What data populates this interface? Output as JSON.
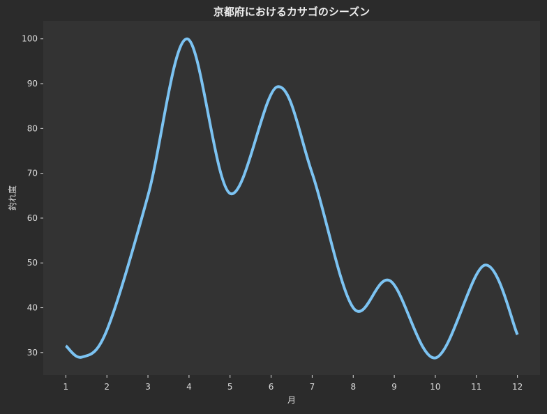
{
  "chart_data": {
    "type": "line",
    "title": "京都府におけるカサゴのシーズン",
    "xlabel": "月",
    "ylabel": "釣れ度",
    "x": [
      1,
      2,
      3,
      4,
      5,
      6,
      7,
      8,
      9,
      10,
      11,
      12
    ],
    "xticks": [
      "1",
      "2",
      "3",
      "4",
      "5",
      "6",
      "7",
      "8",
      "9",
      "10",
      "11",
      "12"
    ],
    "yticks": [
      "30",
      "40",
      "50",
      "60",
      "70",
      "80",
      "90",
      "100"
    ],
    "xlim": [
      0.45,
      12.55
    ],
    "ylim": [
      25,
      104
    ],
    "series": [
      {
        "x": [
          1,
          1.4,
          2,
          3,
          3.95,
          5,
          6.15,
          7,
          8,
          8.9,
          10,
          11.2,
          12
        ],
        "values": [
          31.5,
          29,
          35,
          65,
          100,
          65.5,
          89.3,
          70,
          40,
          46,
          28.8,
          49.5,
          34
        ]
      }
    ],
    "colors": {
      "background": "#2b2b2b",
      "plot_background": "#333333",
      "line": "#7cc3f2",
      "text": "#dddddd"
    },
    "grid": false,
    "legend": "none"
  }
}
